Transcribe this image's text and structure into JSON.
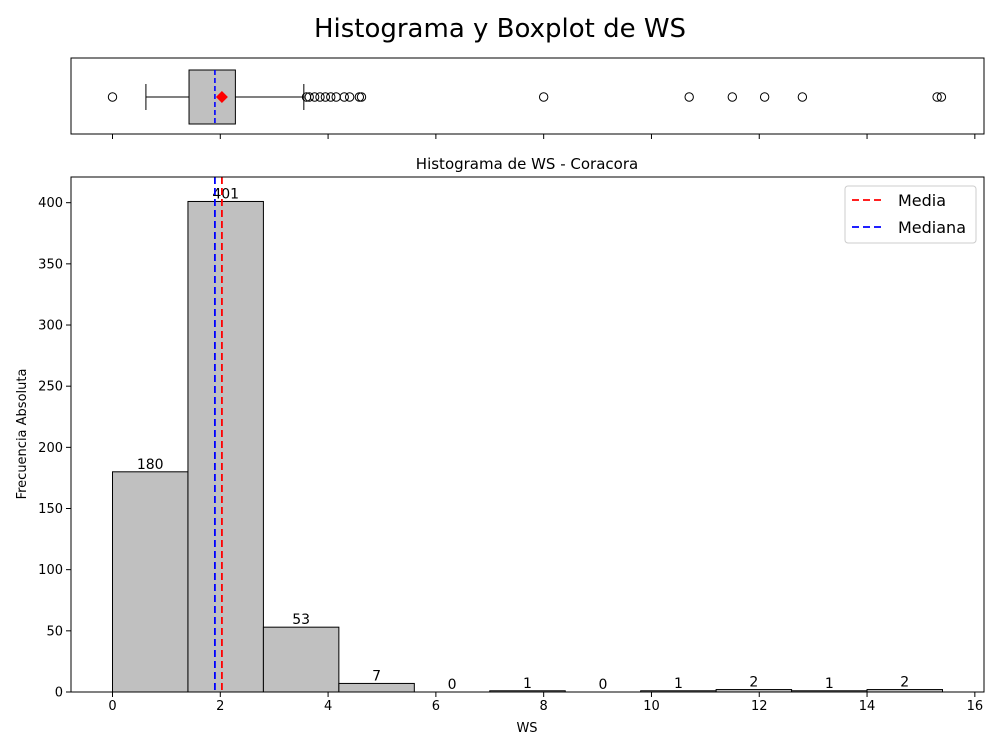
{
  "figure": {
    "suptitle": "Histograma y Boxplot de WS"
  },
  "chart_data": [
    {
      "type": "boxplot",
      "xlim": [
        -0.77,
        16.17
      ],
      "box": {
        "whisker_low": 0.62,
        "q1": 1.42,
        "median": 1.9,
        "q3": 2.28,
        "whisker_high": 3.55,
        "mean": 2.03
      },
      "outliers": [
        0.0,
        3.6,
        3.65,
        3.75,
        3.85,
        3.95,
        4.05,
        4.15,
        4.3,
        4.4,
        4.58,
        4.62,
        8.0,
        10.7,
        11.5,
        12.1,
        12.8,
        15.3,
        15.38
      ],
      "colors": {
        "box_fill": "#c0c0c0",
        "mean_marker": "#ff0000",
        "median_line": "#0000ff"
      }
    },
    {
      "type": "bar",
      "title": "Histograma de WS - Coracora",
      "xlabel": "WS",
      "ylabel": "Frecuencia Absoluta",
      "xlim": [
        -0.77,
        16.17
      ],
      "ylim": [
        0,
        421
      ],
      "xticks": [
        0,
        2,
        4,
        6,
        8,
        10,
        12,
        14,
        16
      ],
      "yticks": [
        0,
        50,
        100,
        150,
        200,
        250,
        300,
        350,
        400
      ],
      "bin_edges": [
        0.0,
        1.4,
        2.8,
        4.2,
        5.6,
        7.0,
        8.4,
        9.8,
        11.2,
        12.6,
        14.0,
        15.4
      ],
      "values": [
        180,
        401,
        53,
        7,
        0,
        1,
        0,
        1,
        2,
        1,
        2
      ],
      "mean": 2.03,
      "median": 1.9,
      "legend": {
        "placement": "top-right",
        "entries": [
          {
            "label": "Media",
            "color": "#ff0000"
          },
          {
            "label": "Mediana",
            "color": "#0000ff"
          }
        ]
      },
      "colors": {
        "bar_fill": "#c0c0c0",
        "bar_edge": "#000000"
      }
    }
  ]
}
